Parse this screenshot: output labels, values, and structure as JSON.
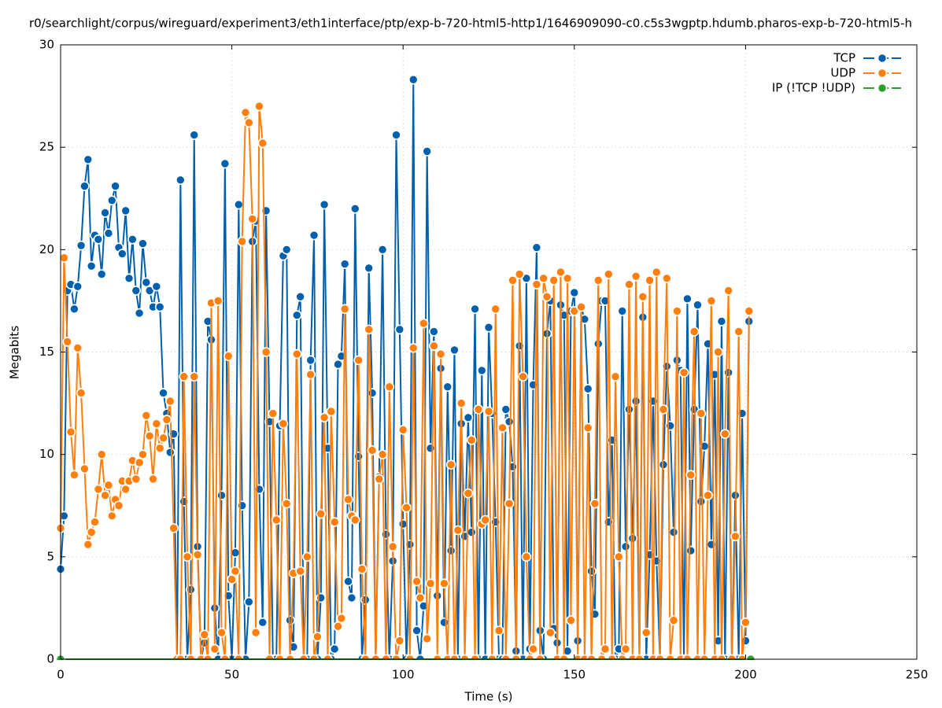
{
  "chart_data": {
    "type": "line",
    "title": "r0/searchlight/corpus/wireguard/experiment3/eth1interface/ptp/exp-b-720-html5-http1/1646909090-c0.c5s3wgptp.hdumb.pharos-exp-b-720-html5-h",
    "x_label": "Time (s)",
    "y_label": "Megabits",
    "xlim": [
      0,
      250
    ],
    "xticks": [
      0,
      50,
      100,
      150,
      200,
      250
    ],
    "ylim": [
      0,
      30
    ],
    "yticks": [
      0,
      5,
      10,
      15,
      20,
      25,
      30
    ],
    "grid": true,
    "legend": "top-right",
    "series": [
      {
        "name": "TCP",
        "color": "#0060ad",
        "x": [
          0,
          1,
          2,
          3,
          4,
          5,
          6,
          7,
          8,
          9,
          10,
          11,
          12,
          13,
          14,
          15,
          16,
          17,
          18,
          19,
          20,
          21,
          22,
          23,
          24,
          25,
          26,
          27,
          28,
          29,
          30,
          31,
          32,
          33,
          34,
          35,
          36,
          37,
          38,
          39,
          40,
          41,
          42,
          43,
          44,
          45,
          46,
          47,
          48,
          49,
          50,
          51,
          52,
          53,
          54,
          55,
          56,
          57,
          58,
          59,
          60,
          61,
          62,
          63,
          64,
          65,
          66,
          67,
          68,
          69,
          70,
          71,
          72,
          73,
          74,
          75,
          76,
          77,
          78,
          79,
          80,
          81,
          82,
          83,
          84,
          85,
          86,
          87,
          88,
          89,
          90,
          91,
          92,
          93,
          94,
          95,
          96,
          97,
          98,
          99,
          100,
          101,
          102,
          103,
          104,
          105,
          106,
          107,
          108,
          109,
          110,
          111,
          112,
          113,
          114,
          115,
          116,
          117,
          118,
          119,
          120,
          121,
          122,
          123,
          124,
          125,
          126,
          127,
          128,
          129,
          130,
          131,
          132,
          133,
          134,
          135,
          136,
          137,
          138,
          139,
          140,
          141,
          142,
          143,
          144,
          145,
          146,
          147,
          148,
          149,
          150,
          151,
          152,
          153,
          154,
          155,
          156,
          157,
          158,
          159,
          160,
          161,
          162,
          163,
          164,
          165,
          166,
          167,
          168,
          169,
          170,
          171,
          172,
          173,
          174,
          175,
          176,
          177,
          178,
          179,
          180,
          181,
          182,
          183,
          184,
          185,
          186,
          187,
          188,
          189,
          190,
          191,
          192,
          193,
          194,
          195,
          196,
          197,
          198,
          199,
          200,
          201
        ],
        "values": [
          4.4,
          7.0,
          18.0,
          18.3,
          17.1,
          18.2,
          20.2,
          23.1,
          24.4,
          19.2,
          20.7,
          20.5,
          18.8,
          21.8,
          20.8,
          22.4,
          23.1,
          20.1,
          19.8,
          21.9,
          18.6,
          20.5,
          18.0,
          16.9,
          20.3,
          18.4,
          18.0,
          17.2,
          18.2,
          17.2,
          13.0,
          12.0,
          10.1,
          11.0,
          0,
          23.4,
          7.7,
          0,
          3.4,
          25.6,
          5.5,
          0,
          0.8,
          16.5,
          15.6,
          2.5,
          0,
          8.0,
          24.2,
          3.1,
          0,
          5.2,
          22.2,
          7.5,
          0,
          2.8,
          20.4,
          21.4,
          8.3,
          1.8,
          21.9,
          11.6,
          0,
          0,
          11.4,
          19.7,
          20.0,
          1.9,
          0.6,
          16.8,
          17.7,
          0,
          0,
          14.6,
          20.7,
          0,
          3.0,
          22.2,
          10.3,
          0,
          0.5,
          14.4,
          14.8,
          19.3,
          3.8,
          3.0,
          22.0,
          9.9,
          0,
          2.9,
          19.1,
          13.0,
          0,
          8.9,
          20.0,
          6.1,
          0,
          4.8,
          25.6,
          16.1,
          6.6,
          0,
          5.6,
          28.3,
          1.4,
          0,
          2.6,
          24.8,
          10.3,
          16.0,
          3.1,
          14.2,
          1.8,
          13.3,
          5.3,
          15.1,
          0,
          11.5,
          6.0,
          11.8,
          6.2,
          17.1,
          0,
          14.1,
          0,
          16.2,
          12.0,
          6.7,
          0,
          0,
          12.2,
          11.6,
          9.4,
          0.4,
          15.3,
          0,
          18.6,
          0.5,
          13.4,
          20.1,
          1.4,
          0,
          15.9,
          17.5,
          1.5,
          0.8,
          17.3,
          16.8,
          0.4,
          17.0,
          17.9,
          0.9,
          17.2,
          16.6,
          13.2,
          4.3,
          2.2,
          15.4,
          17.5,
          17.5,
          6.7,
          10.7,
          0,
          0.5,
          17.0,
          5.5,
          12.2,
          5.9,
          12.6,
          0,
          16.7,
          0,
          5.1,
          12.6,
          4.8,
          0,
          9.5,
          14.3,
          11.4,
          6.2,
          14.6,
          14.1,
          0,
          17.6,
          5.3,
          12.2,
          17.3,
          7.7,
          10.4,
          15.4,
          5.6,
          13.9,
          0.9,
          16.5,
          0,
          14.0,
          0,
          8.0,
          0,
          12.0,
          0.9,
          16.5
        ]
      },
      {
        "name": "UDP",
        "color": "#ff7f0e",
        "x": [
          0,
          1,
          2,
          3,
          4,
          5,
          6,
          7,
          8,
          9,
          10,
          11,
          12,
          13,
          14,
          15,
          16,
          17,
          18,
          19,
          20,
          21,
          22,
          23,
          24,
          25,
          26,
          27,
          28,
          29,
          30,
          31,
          32,
          33,
          34,
          35,
          36,
          37,
          38,
          39,
          40,
          41,
          42,
          43,
          44,
          45,
          46,
          47,
          48,
          49,
          50,
          51,
          52,
          53,
          54,
          55,
          56,
          57,
          58,
          59,
          60,
          61,
          62,
          63,
          64,
          65,
          66,
          67,
          68,
          69,
          70,
          71,
          72,
          73,
          74,
          75,
          76,
          77,
          78,
          79,
          80,
          81,
          82,
          83,
          84,
          85,
          86,
          87,
          88,
          89,
          90,
          91,
          92,
          93,
          94,
          95,
          96,
          97,
          98,
          99,
          100,
          101,
          102,
          103,
          104,
          105,
          106,
          107,
          108,
          109,
          110,
          111,
          112,
          113,
          114,
          115,
          116,
          117,
          118,
          119,
          120,
          121,
          122,
          123,
          124,
          125,
          126,
          127,
          128,
          129,
          130,
          131,
          132,
          133,
          134,
          135,
          136,
          137,
          138,
          139,
          140,
          141,
          142,
          143,
          144,
          145,
          146,
          147,
          148,
          149,
          150,
          151,
          152,
          153,
          154,
          155,
          156,
          157,
          158,
          159,
          160,
          161,
          162,
          163,
          164,
          165,
          166,
          167,
          168,
          169,
          170,
          171,
          172,
          173,
          174,
          175,
          176,
          177,
          178,
          179,
          180,
          181,
          182,
          183,
          184,
          185,
          186,
          187,
          188,
          189,
          190,
          191,
          192,
          193,
          194,
          195,
          196,
          197,
          198,
          199,
          200,
          201
        ],
        "values": [
          6.4,
          19.6,
          15.5,
          11.1,
          9.0,
          15.2,
          13.0,
          9.3,
          5.6,
          6.2,
          6.7,
          8.3,
          10.0,
          8.0,
          8.5,
          7.0,
          7.8,
          7.5,
          8.7,
          8.3,
          8.7,
          9.7,
          8.8,
          9.6,
          10.0,
          11.9,
          10.9,
          8.8,
          11.5,
          10.3,
          10.8,
          11.7,
          12.6,
          6.4,
          0,
          0,
          13.8,
          5.0,
          0,
          13.8,
          5.1,
          0,
          1.2,
          0,
          17.4,
          0.5,
          17.5,
          1.3,
          0,
          14.8,
          3.9,
          4.3,
          0,
          20.4,
          26.7,
          26.2,
          21.5,
          1.3,
          27.0,
          25.2,
          15.0,
          0,
          12.0,
          6.8,
          0,
          11.5,
          7.6,
          0,
          4.2,
          14.9,
          4.3,
          0,
          5.0,
          13.9,
          0,
          1.1,
          7.1,
          11.8,
          0,
          12.1,
          6.7,
          1.6,
          2.0,
          17.1,
          7.8,
          7.0,
          6.8,
          14.6,
          4.4,
          0,
          16.1,
          10.2,
          0,
          8.8,
          10.0,
          0,
          13.3,
          5.5,
          0,
          0.9,
          11.2,
          7.4,
          0,
          15.2,
          3.8,
          3.0,
          16.4,
          1.0,
          3.7,
          15.3,
          0,
          14.9,
          3.7,
          0,
          9.5,
          0,
          6.3,
          12.5,
          0,
          8.1,
          10.7,
          0,
          12.2,
          6.6,
          6.8,
          12.1,
          0,
          17.1,
          1.4,
          11.3,
          0,
          7.6,
          18.5,
          0,
          18.8,
          13.8,
          5.0,
          0,
          0.5,
          18.3,
          0,
          18.6,
          17.7,
          1.3,
          18.5,
          0,
          18.9,
          0,
          18.6,
          1.9,
          17.0,
          0,
          17.2,
          0,
          11.3,
          0,
          7.6,
          18.5,
          0,
          0.5,
          18.8,
          0,
          13.8,
          5.0,
          0,
          0.5,
          18.3,
          0,
          18.7,
          0,
          17.7,
          1.3,
          18.5,
          0,
          18.9,
          0,
          12.2,
          18.6,
          0,
          1.9,
          17.0,
          0,
          14.0,
          0,
          9.0,
          16.0,
          0,
          12.0,
          0,
          8.0,
          17.5,
          0,
          15.0,
          0,
          11.0,
          18.0,
          0,
          6.0,
          16.0,
          0,
          1.8,
          17.0
        ]
      },
      {
        "name": "IP (!TCP  !UDP)",
        "color": "#2ca02c",
        "x": [
          0,
          201.5
        ],
        "values": [
          0,
          0
        ]
      }
    ]
  }
}
